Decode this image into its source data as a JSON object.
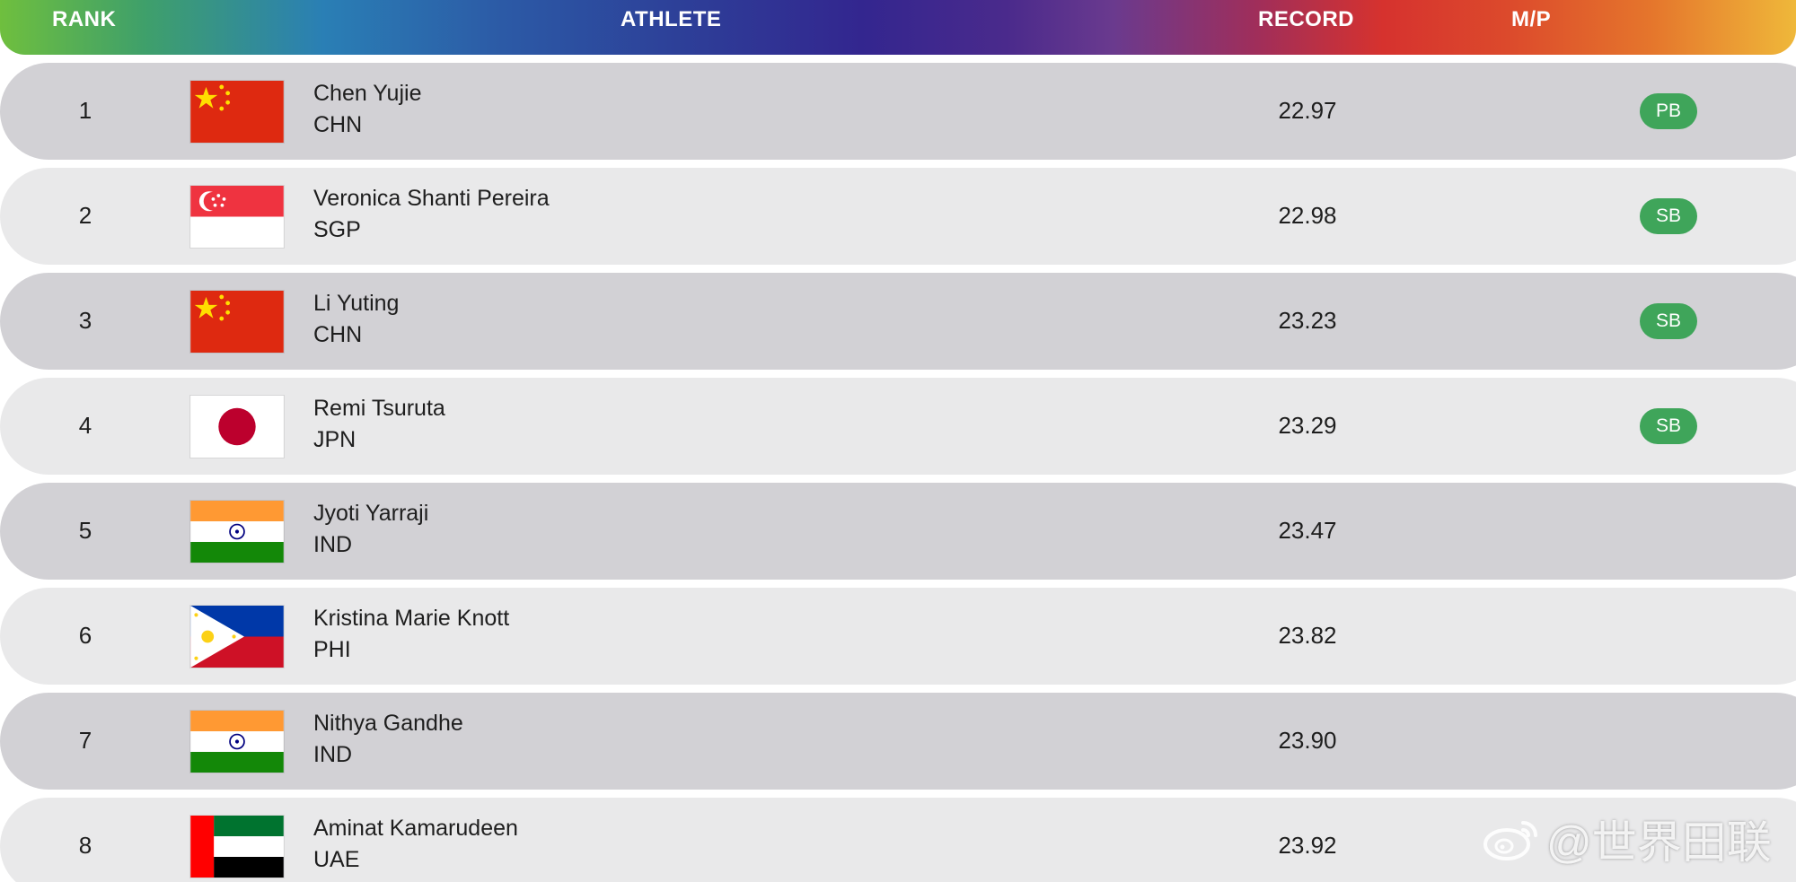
{
  "header": {
    "rank": "RANK",
    "athlete": "ATHLETE",
    "record": "RECORD",
    "mp": "M/P"
  },
  "rows": [
    {
      "rank": "1",
      "name": "Chen Yujie",
      "country": "CHN",
      "record": "22.97",
      "mp": "PB",
      "flag": "china-flag-icon"
    },
    {
      "rank": "2",
      "name": "Veronica Shanti Pereira",
      "country": "SGP",
      "record": "22.98",
      "mp": "SB",
      "flag": "singapore-flag-icon"
    },
    {
      "rank": "3",
      "name": "Li Yuting",
      "country": "CHN",
      "record": "23.23",
      "mp": "SB",
      "flag": "china-flag-icon"
    },
    {
      "rank": "4",
      "name": "Remi Tsuruta",
      "country": "JPN",
      "record": "23.29",
      "mp": "SB",
      "flag": "japan-flag-icon"
    },
    {
      "rank": "5",
      "name": "Jyoti Yarraji",
      "country": "IND",
      "record": "23.47",
      "mp": "",
      "flag": "india-flag-icon"
    },
    {
      "rank": "6",
      "name": "Kristina Marie Knott",
      "country": "PHI",
      "record": "23.82",
      "mp": "",
      "flag": "philippines-flag-icon"
    },
    {
      "rank": "7",
      "name": "Nithya Gandhe",
      "country": "IND",
      "record": "23.90",
      "mp": "",
      "flag": "india-flag-icon"
    },
    {
      "rank": "8",
      "name": "Aminat Kamarudeen",
      "country": "UAE",
      "record": "23.92",
      "mp": "",
      "flag": "uae-flag-icon"
    }
  ],
  "watermark": {
    "text": "@世界田联",
    "icon": "weibo-logo-icon"
  },
  "colors": {
    "row_dark": "#d2d1d5",
    "row_light": "#e9e9ea",
    "badge": "#3fa55a"
  }
}
